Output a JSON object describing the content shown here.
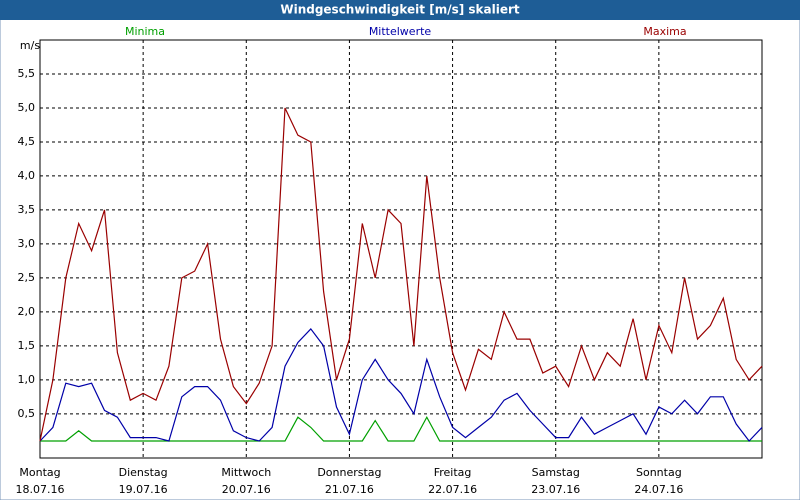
{
  "chart_data": {
    "type": "line",
    "title": "Windgeschwindigkeit [m/s] skaliert",
    "y_label": "m/s",
    "x": [
      0,
      3,
      6,
      9,
      12,
      15,
      18,
      21,
      24,
      27,
      30,
      33,
      36,
      39,
      42,
      45,
      48,
      51,
      54,
      57,
      60,
      63,
      66,
      69,
      72,
      75,
      78,
      81,
      84,
      87,
      90,
      93,
      96,
      99,
      102,
      105,
      108,
      111,
      114,
      117,
      120,
      123,
      126,
      129,
      132,
      135,
      138,
      141,
      144,
      147,
      150,
      153,
      156,
      159,
      162,
      165,
      168
    ],
    "xlim": [
      0,
      168
    ],
    "xticks": [
      {
        "value": 0,
        "label": "Montag",
        "date": "18.07.16"
      },
      {
        "value": 24,
        "label": "Dienstag",
        "date": "19.07.16"
      },
      {
        "value": 48,
        "label": "Mittwoch",
        "date": "20.07.16"
      },
      {
        "value": 72,
        "label": "Donnerstag",
        "date": "21.07.16"
      },
      {
        "value": 96,
        "label": "Freitag",
        "date": "22.07.16"
      },
      {
        "value": 120,
        "label": "Samstag",
        "date": "23.07.16"
      },
      {
        "value": 144,
        "label": "Sonntag",
        "date": "24.07.16"
      }
    ],
    "ylim": [
      -0.15,
      6.0
    ],
    "yticks": [
      {
        "value": 0.5,
        "label": "0,5"
      },
      {
        "value": 1.0,
        "label": "1,0"
      },
      {
        "value": 1.5,
        "label": "1,5"
      },
      {
        "value": 2.0,
        "label": "2,0"
      },
      {
        "value": 2.5,
        "label": "2,5"
      },
      {
        "value": 3.0,
        "label": "3,0"
      },
      {
        "value": 3.5,
        "label": "3,5"
      },
      {
        "value": 4.0,
        "label": "4,0"
      },
      {
        "value": 4.5,
        "label": "4,5"
      },
      {
        "value": 5.0,
        "label": "5,0"
      },
      {
        "value": 5.5,
        "label": "5,5"
      }
    ],
    "grid": true,
    "series": [
      {
        "name": "Minima",
        "color": "#00a000",
        "values": [
          0.1,
          0.1,
          0.1,
          0.25,
          0.1,
          0.1,
          0.1,
          0.1,
          0.1,
          0.1,
          0.1,
          0.1,
          0.1,
          0.1,
          0.1,
          0.1,
          0.1,
          0.1,
          0.1,
          0.1,
          0.45,
          0.3,
          0.1,
          0.1,
          0.1,
          0.1,
          0.4,
          0.1,
          0.1,
          0.1,
          0.45,
          0.1,
          0.1,
          0.1,
          0.1,
          0.1,
          0.1,
          0.1,
          0.1,
          0.1,
          0.1,
          0.1,
          0.1,
          0.1,
          0.1,
          0.1,
          0.1,
          0.1,
          0.1,
          0.1,
          0.1,
          0.1,
          0.1,
          0.1,
          0.1,
          0.1,
          0.1
        ]
      },
      {
        "name": "Mittelwerte",
        "color": "#0000a8",
        "values": [
          0.1,
          0.3,
          0.95,
          0.9,
          0.95,
          0.55,
          0.45,
          0.15,
          0.15,
          0.15,
          0.1,
          0.75,
          0.9,
          0.9,
          0.7,
          0.25,
          0.15,
          0.1,
          0.3,
          1.2,
          1.55,
          1.75,
          1.5,
          0.6,
          0.2,
          1.0,
          1.3,
          1.0,
          0.8,
          0.5,
          1.3,
          0.75,
          0.3,
          0.15,
          0.3,
          0.45,
          0.7,
          0.8,
          0.55,
          0.35,
          0.15,
          0.15,
          0.45,
          0.2,
          0.3,
          0.4,
          0.5,
          0.2,
          0.6,
          0.5,
          0.7,
          0.5,
          0.75,
          0.75,
          0.35,
          0.1,
          0.3
        ]
      },
      {
        "name": "Maxima",
        "color": "#9a0000",
        "values": [
          0.1,
          1.0,
          2.5,
          3.3,
          2.9,
          3.5,
          1.4,
          0.7,
          0.8,
          0.7,
          1.2,
          2.5,
          2.6,
          3.0,
          1.6,
          0.9,
          0.65,
          0.95,
          1.5,
          5.0,
          4.6,
          4.5,
          2.3,
          1.0,
          1.6,
          3.3,
          2.5,
          3.5,
          3.3,
          1.5,
          4.0,
          2.5,
          1.4,
          0.85,
          1.45,
          1.3,
          2.0,
          1.6,
          1.6,
          1.1,
          1.2,
          0.9,
          1.5,
          1.0,
          1.4,
          1.2,
          1.9,
          1.0,
          1.8,
          1.4,
          2.5,
          1.6,
          1.8,
          2.2,
          1.3,
          1.0,
          1.2
        ]
      }
    ]
  }
}
